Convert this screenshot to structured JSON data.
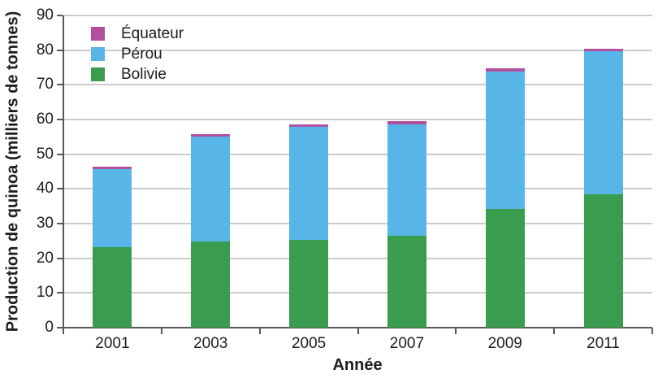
{
  "chart_data": {
    "type": "bar",
    "stacked": true,
    "title": "",
    "xlabel": "Année",
    "ylabel": "Production de quinoa (milliers de tonnes)",
    "categories": [
      "2001",
      "2003",
      "2005",
      "2007",
      "2009",
      "2011"
    ],
    "series": [
      {
        "name": "Bolivie",
        "color": "#3a9c4e",
        "values": [
          23.3,
          24.9,
          25.4,
          26.5,
          34.2,
          38.4
        ]
      },
      {
        "name": "Pérou",
        "color": "#57b5e7",
        "values": [
          22.3,
          30.2,
          32.5,
          32.2,
          39.7,
          41.2
        ]
      },
      {
        "name": "Équateur",
        "color": "#b1509e",
        "values": [
          0.7,
          0.6,
          0.7,
          0.8,
          0.9,
          0.8
        ]
      }
    ],
    "stack_totals": [
      46.3,
      55.7,
      58.6,
      59.5,
      74.8,
      80.4
    ],
    "y_ticks": [
      0,
      10,
      20,
      30,
      40,
      50,
      60,
      70,
      80,
      90
    ],
    "ylim": [
      0,
      90
    ],
    "grid": true,
    "legend": {
      "position": "top-left",
      "order": [
        "Équateur",
        "Pérou",
        "Bolivie"
      ]
    },
    "colors": {
      "grid": "#cbcbcb",
      "axis": "#58585b",
      "text": "#1d1d1b",
      "background": "#ffffff"
    }
  }
}
